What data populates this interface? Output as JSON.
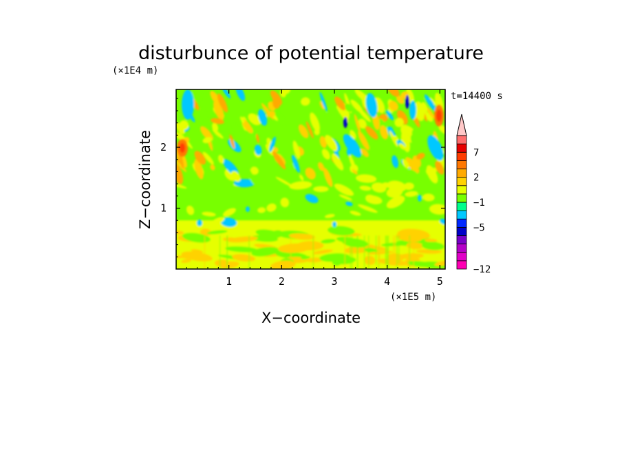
{
  "chart_data": {
    "type": "heatmap",
    "title": "disturbunce of potential temperature",
    "xlabel": "X−coordinate",
    "ylabel": "Z−coordinate",
    "x_unit_label": "(×1E5 m)",
    "y_unit_label": "(×1E4 m)",
    "time_label": "t=14400 s",
    "xlim": [
      0,
      5.1
    ],
    "ylim": [
      0,
      2.95
    ],
    "x_ticks": [
      1,
      2,
      3,
      4,
      5
    ],
    "x_tick_labels": [
      "1",
      "2",
      "3",
      "4",
      "5"
    ],
    "y_ticks": [
      1,
      2
    ],
    "y_tick_labels": [
      "1",
      "2"
    ],
    "colorbar": {
      "levels_min_to_max": [
        "<-12",
        "-12..-10",
        "-10..-8",
        "-8..-6",
        "-6..-5",
        "-5..-4",
        "-4..-2",
        "-2..-1",
        "-1..0",
        "0..1",
        "1..2",
        "2..3",
        "3..5",
        "5..7",
        "7..9",
        "9..11",
        ">11"
      ],
      "colors_min_to_max": [
        "#ff00b4",
        "#e100c8",
        "#b400c8",
        "#7800c8",
        "#0000c8",
        "#0028ff",
        "#00c8ff",
        "#00ff8c",
        "#78ff00",
        "#e6ff00",
        "#ffd200",
        "#ffaa00",
        "#ff7800",
        "#ff3c00",
        "#e60000",
        "#ff6e6e",
        "#ffc8c8"
      ],
      "tick_labels": [
        "7",
        "2",
        "−1",
        "−5",
        "−12"
      ],
      "tick_values": [
        7,
        2,
        -1,
        -5,
        -12
      ],
      "extend": "max"
    },
    "field_description_regions": [
      {
        "z_range": [
          0,
          0.8
        ],
        "dominant_value_range": "0..2",
        "dominant_colors": [
          "#e6ff00",
          "#ffd200"
        ]
      },
      {
        "z_range": [
          0.8,
          1.5
        ],
        "dominant_value_range": "-1..0",
        "dominant_colors": [
          "#78ff00"
        ]
      },
      {
        "z_range": [
          1.5,
          2.95
        ],
        "dominant_value_range": "-6..5",
        "dominant_colors": [
          "#78ff00",
          "#e6ff00",
          "#ffd200",
          "#ffaa00",
          "#00c8ff",
          "#0000c8"
        ]
      }
    ],
    "grid": false,
    "legend": "colorbar-right"
  }
}
